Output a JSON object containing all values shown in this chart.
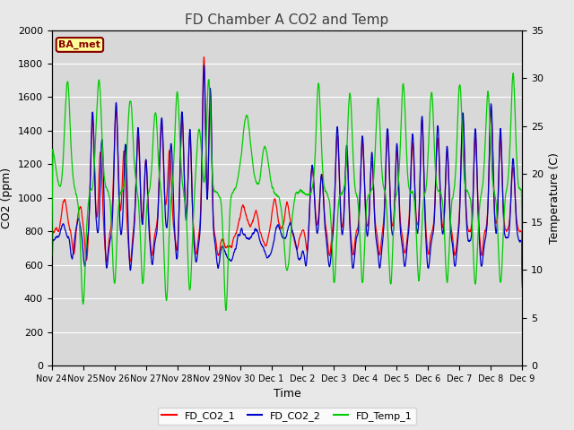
{
  "title": "FD Chamber A CO2 and Temp",
  "xlabel": "Time",
  "ylabel_left": "CO2 (ppm)",
  "ylabel_right": "Temperature (C)",
  "ylim_left": [
    0,
    2000
  ],
  "ylim_right": [
    0,
    35
  ],
  "yticks_left": [
    0,
    200,
    400,
    600,
    800,
    1000,
    1200,
    1400,
    1600,
    1800,
    2000
  ],
  "yticks_right": [
    0,
    5,
    10,
    15,
    20,
    25,
    30,
    35
  ],
  "xtick_labels": [
    "Nov 24",
    "Nov 25",
    "Nov 26",
    "Nov 27",
    "Nov 28",
    "Nov 29",
    "Nov 30",
    "Dec 1",
    "Dec 2",
    "Dec 3",
    "Dec 4",
    "Dec 5",
    "Dec 6",
    "Dec 7",
    "Dec 8",
    "Dec 9"
  ],
  "legend_labels": [
    "FD_CO2_1",
    "FD_CO2_2",
    "FD_Temp_1"
  ],
  "legend_colors": [
    "#ff0000",
    "#0000cc",
    "#00cc00"
  ],
  "co2_1_color": "#ff0000",
  "co2_2_color": "#0000cc",
  "temp_color": "#00cc00",
  "annotation_text": "BA_met",
  "annotation_color": "#880000",
  "annotation_bg": "#ffff99",
  "plot_bg_color": "#d8d8d8",
  "fig_bg_color": "#e8e8e8",
  "grid_color": "#ffffff",
  "title_fontsize": 11,
  "axis_fontsize": 9,
  "tick_fontsize": 8,
  "n_points": 2000
}
